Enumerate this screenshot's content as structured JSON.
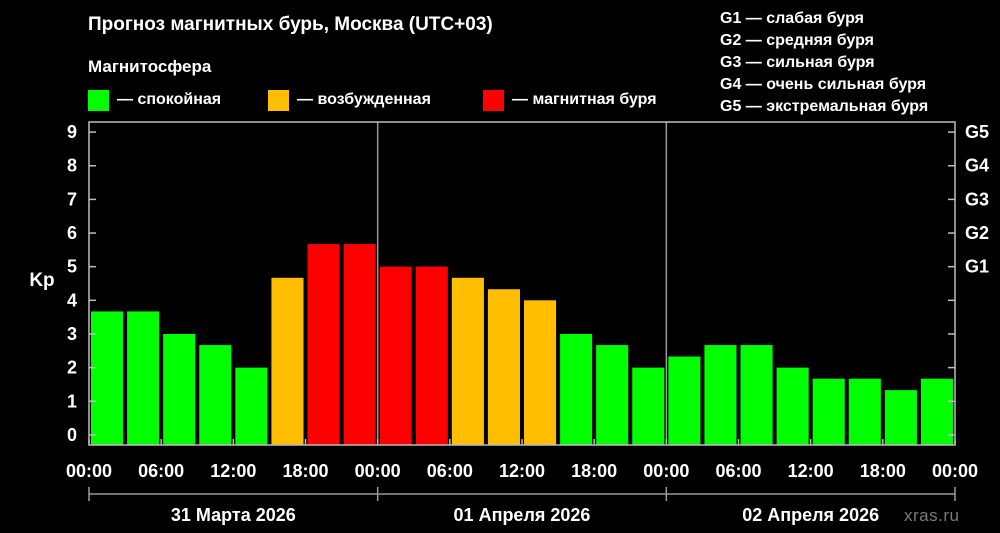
{
  "title": "Прогноз магнитных бурь, Москва (UTC+03)",
  "legend": {
    "title": "Магнитосфера",
    "items": [
      {
        "label": "— спокойная",
        "color": "#00ff00"
      },
      {
        "label": "— возбужденная",
        "color": "#ffbf00"
      },
      {
        "label": "— магнитная буря",
        "color": "#ff0000"
      }
    ]
  },
  "storm_scale": [
    "G1 — слабая буря",
    "G2 — средняя буря",
    "G3 — сильная буря",
    "G4 — очень сильная буря",
    "G5 — экстремальная буря"
  ],
  "watermark": "xras.ru",
  "chart_data": {
    "type": "bar",
    "ylabel": "Kp",
    "ylim": [
      -0.3,
      9.3
    ],
    "yticks": [
      0,
      1,
      2,
      3,
      4,
      5,
      6,
      7,
      8,
      9
    ],
    "right_axis": {
      "labels": [
        "G1",
        "G2",
        "G3",
        "G4",
        "G5"
      ],
      "at_kp": [
        5,
        6,
        7,
        8,
        9
      ]
    },
    "x_tick_labels": [
      "00:00",
      "06:00",
      "12:00",
      "18:00",
      "00:00",
      "06:00",
      "12:00",
      "18:00",
      "00:00",
      "06:00",
      "12:00",
      "18:00",
      "00:00"
    ],
    "day_labels": [
      "31 Марта 2026",
      "01 Апреля 2026",
      "02 Апреля 2026"
    ],
    "interval_hours": 3,
    "grid": false,
    "values": [
      3.67,
      3.67,
      3.0,
      2.67,
      2.0,
      4.67,
      5.67,
      5.67,
      5.0,
      5.0,
      4.67,
      4.33,
      4.0,
      3.0,
      2.67,
      2.0,
      2.33,
      2.67,
      2.67,
      2.0,
      1.67,
      1.67,
      1.33,
      1.67
    ],
    "levels": [
      "quiet",
      "quiet",
      "quiet",
      "quiet",
      "quiet",
      "active",
      "storm",
      "storm",
      "storm",
      "storm",
      "active",
      "active",
      "active",
      "quiet",
      "quiet",
      "quiet",
      "quiet",
      "quiet",
      "quiet",
      "quiet",
      "quiet",
      "quiet",
      "quiet",
      "quiet"
    ],
    "level_colors": {
      "quiet": "#00ff00",
      "active": "#ffbf00",
      "storm": "#ff0000"
    }
  }
}
